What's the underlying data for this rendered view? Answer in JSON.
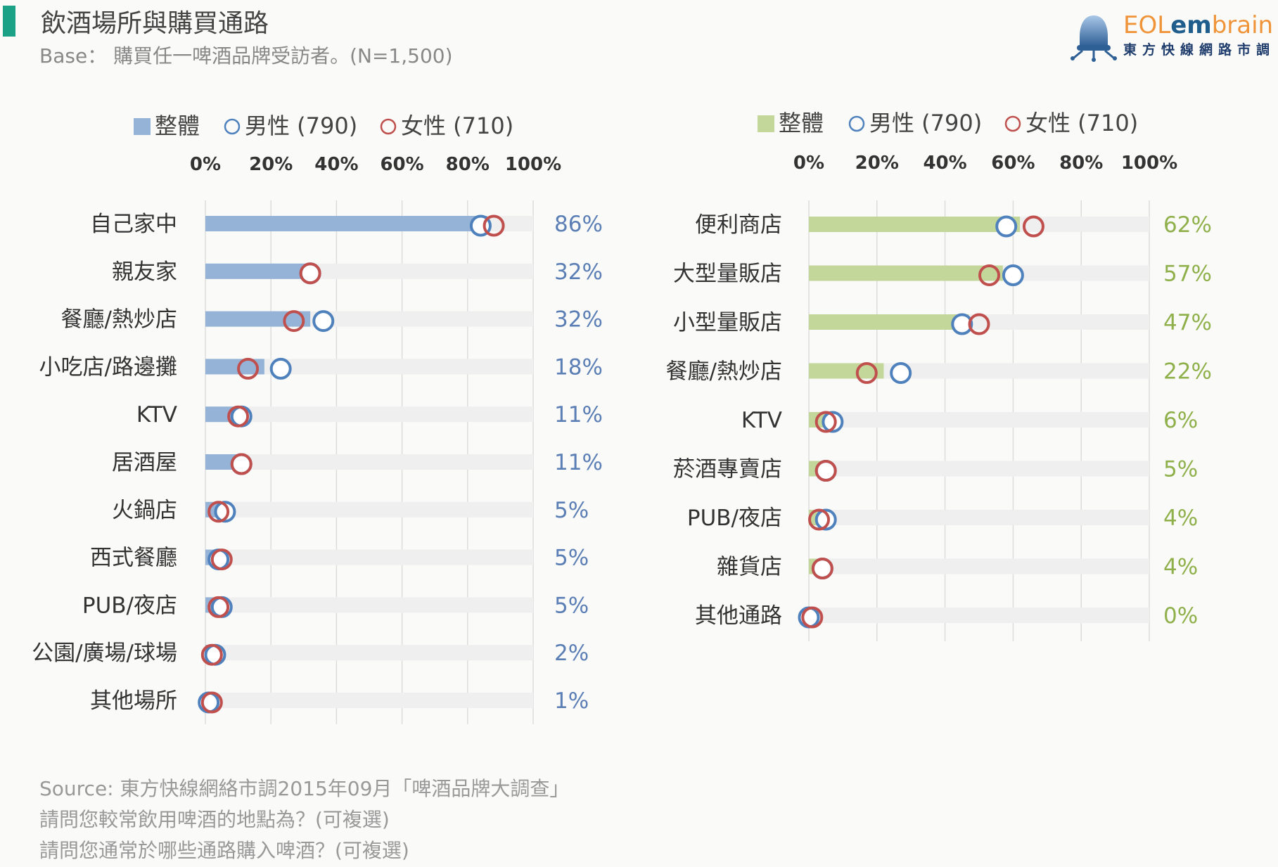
{
  "header": {
    "title": "飲酒場所與購買通路",
    "base_note": "Base： 購買任一啤酒品牌受訪者。(N=1,500)"
  },
  "logo": {
    "part1": "EOL",
    "part2": "em",
    "part3": "brain",
    "subtitle": "東方快線網路市調"
  },
  "colors": {
    "accent": "#1ba286",
    "total_left": "#95b3d7",
    "total_right": "#c4d79b",
    "male": "#4f81bd",
    "female": "#c0504d",
    "track": "#efefef",
    "grid": "#dcdcdc",
    "value_left": "#5b7fb5",
    "value_right": "#8fb04a"
  },
  "chart_data": [
    {
      "type": "bar",
      "legend": [
        "整體",
        "男性 (790)",
        "女性 (710)"
      ],
      "xlim": [
        0,
        100
      ],
      "xticks": [
        "0%",
        "20%",
        "40%",
        "60%",
        "80%",
        "100%"
      ],
      "categories": [
        "自己家中",
        "親友家",
        "餐廳/熱炒店",
        "小吃店/路邊攤",
        "KTV",
        "居酒屋",
        "火鍋店",
        "西式餐廳",
        "PUB/夜店",
        "公園/廣場/球場",
        "其他場所"
      ],
      "value_labels": [
        "86%",
        "32%",
        "32%",
        "18%",
        "11%",
        "11%",
        "5%",
        "5%",
        "5%",
        "2%",
        "1%"
      ],
      "series": [
        {
          "name": "整體",
          "values": [
            86,
            32,
            32,
            18,
            11,
            11,
            5,
            5,
            5,
            2,
            1
          ]
        },
        {
          "name": "男性 (790)",
          "values": [
            84,
            32,
            36,
            23,
            11,
            11,
            6,
            4,
            5,
            3,
            1
          ]
        },
        {
          "name": "女性 (710)",
          "values": [
            88,
            32,
            27,
            13,
            10,
            11,
            4,
            5,
            4,
            2,
            2
          ]
        }
      ]
    },
    {
      "type": "bar",
      "legend": [
        "整體",
        "男性 (790)",
        "女性 (710)"
      ],
      "xlim": [
        0,
        100
      ],
      "xticks": [
        "0%",
        "20%",
        "40%",
        "60%",
        "80%",
        "100%"
      ],
      "categories": [
        "便利商店",
        "大型量販店",
        "小型量販店",
        "餐廳/熱炒店",
        "KTV",
        "菸酒專賣店",
        "PUB/夜店",
        "雜貨店",
        "其他通路"
      ],
      "value_labels": [
        "62%",
        "57%",
        "47%",
        "22%",
        "6%",
        "5%",
        "4%",
        "4%",
        "0%"
      ],
      "series": [
        {
          "name": "整體",
          "values": [
            62,
            57,
            47,
            22,
            6,
            5,
            4,
            4,
            0
          ]
        },
        {
          "name": "男性 (790)",
          "values": [
            58,
            60,
            45,
            27,
            7,
            5,
            5,
            4,
            0
          ]
        },
        {
          "name": "女性 (710)",
          "values": [
            66,
            53,
            50,
            17,
            5,
            5,
            3,
            4,
            1
          ]
        }
      ]
    }
  ],
  "footer": {
    "source": "Source: 東方快線網絡市調2015年09月「啤酒品牌大調查」",
    "q1": "請問您較常飲用啤酒的地點為？(可複選)",
    "q2": "請問您通常於哪些通路購入啤酒？(可複選)"
  }
}
